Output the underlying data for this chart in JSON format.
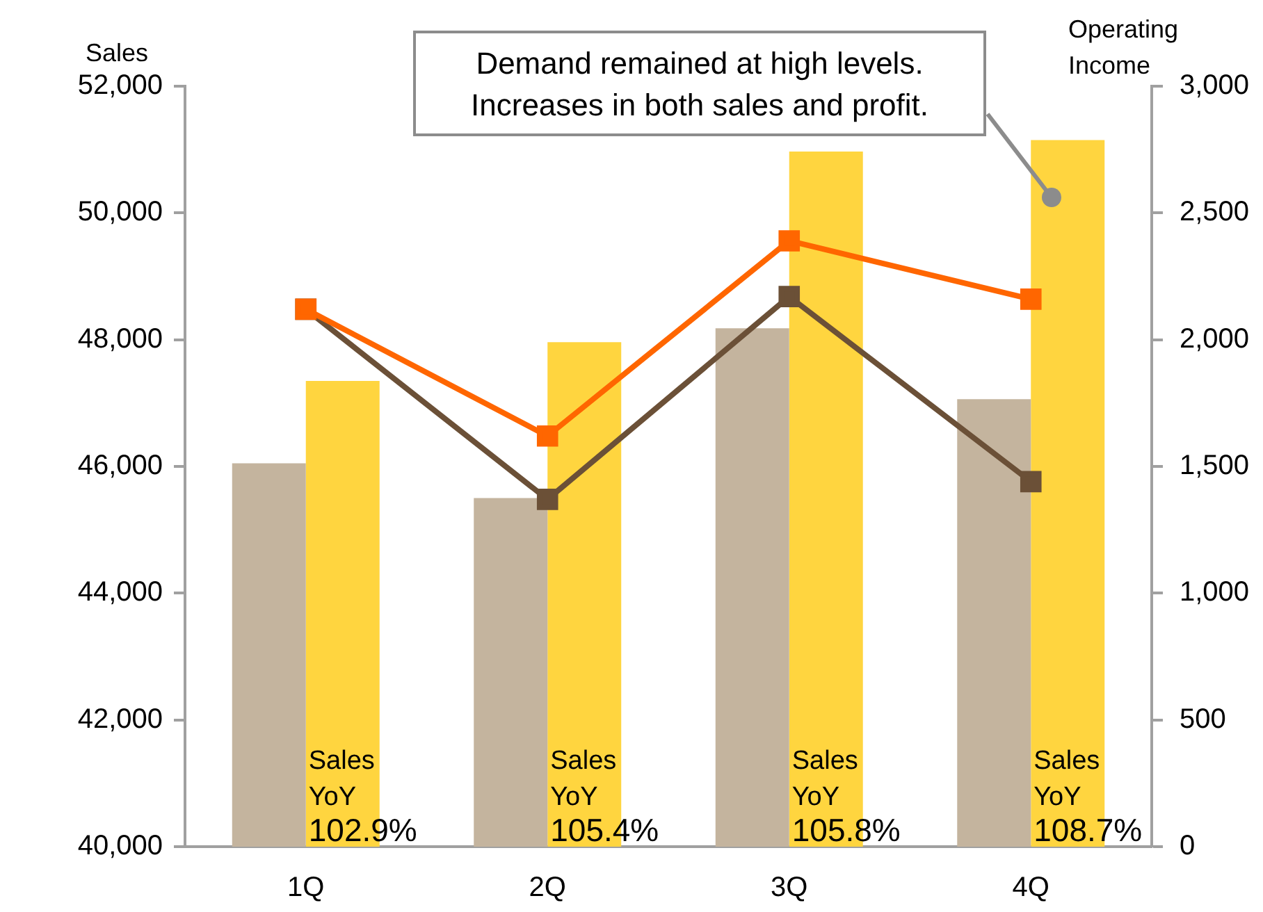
{
  "chart_data": {
    "type": "bar",
    "categories": [
      "1Q",
      "2Q",
      "3Q",
      "4Q"
    ],
    "ylabel": "Sales",
    "y2label": "Operating Income",
    "ylim": [
      40000,
      52000
    ],
    "yticks": [
      {
        "value": 40000,
        "label": "40,000"
      },
      {
        "value": 42000,
        "label": "42,000"
      },
      {
        "value": 44000,
        "label": "44,000"
      },
      {
        "value": 46000,
        "label": "46,000"
      },
      {
        "value": 48000,
        "label": "48,000"
      },
      {
        "value": 50000,
        "label": "50,000"
      },
      {
        "value": 52000,
        "label": "52,000"
      }
    ],
    "y2lim": [
      0,
      3000
    ],
    "y2ticks": [
      0,
      500,
      {
        "value": 1000,
        "label": "1,000"
      },
      {
        "value": 1500,
        "label": "1,500"
      },
      {
        "value": 2000,
        "label": "2,000"
      },
      {
        "value": 2500,
        "label": "2,500"
      },
      {
        "value": 3000,
        "label": "3,000"
      }
    ],
    "grid": false,
    "legend": false,
    "marker": "square",
    "series": [
      {
        "color": "#c4b49e",
        "values": [
          46050,
          45500,
          48180,
          47060
        ]
      },
      {
        "color": "#ffd53f",
        "values": [
          47350,
          47960,
          50970,
          51150
        ]
      },
      {
        "type": "line",
        "axis": "y2",
        "color": "#ff6600",
        "values": [
          2120,
          1620,
          2390,
          2160
        ]
      },
      {
        "type": "line",
        "axis": "y2",
        "color": "#6b5037",
        "values": [
          2120,
          1370,
          2170,
          1440
        ]
      }
    ],
    "annotations": [
      "Demand remained at high levels.\nIncreases in both sales and profit.",
      {
        "text": "Sales\nYoY\n102.9%",
        "x": "1Q"
      },
      {
        "text": "Sales\nYoY\n105.4%",
        "x": "2Q"
      },
      {
        "text": "Sales\nYoY\n105.8%",
        "x": "3Q"
      },
      {
        "text": "Sales\nYoY\n108.7%",
        "x": "4Q"
      }
    ]
  }
}
